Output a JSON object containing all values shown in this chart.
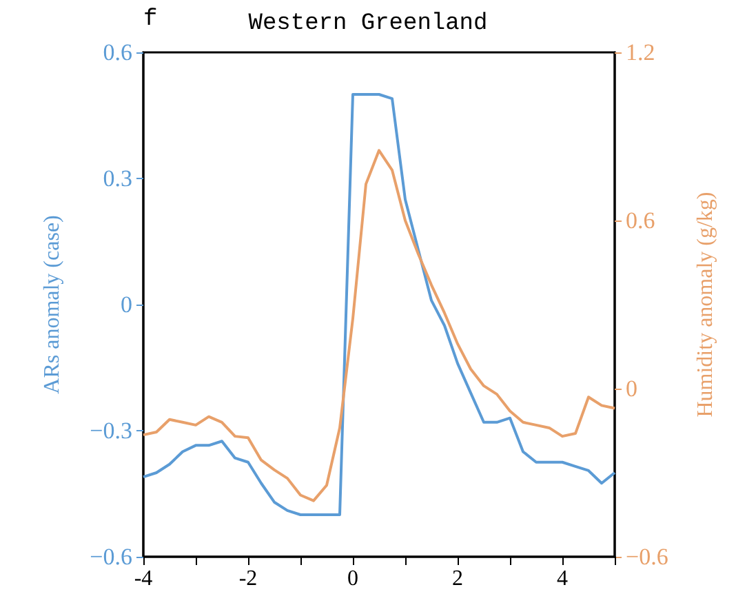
{
  "chart_data": {
    "type": "line",
    "title": "Western Greenland",
    "annotations": [
      "f"
    ],
    "ylabel": "ARs anomaly (case)",
    "y2label": "Humidity anomaly (g/kg)",
    "x": [
      -4,
      -3.75,
      -3.5,
      -3.25,
      -3,
      -2.75,
      -2.5,
      -2.25,
      -2,
      -1.75,
      -1.5,
      -1.25,
      -1,
      -0.75,
      -0.5,
      -0.25,
      0,
      0.25,
      0.5,
      0.75,
      1,
      1.25,
      1.5,
      1.75,
      2,
      2.25,
      2.5,
      2.75,
      3,
      3.25,
      3.5,
      3.75,
      4,
      4.25,
      4.5,
      4.75,
      5
    ],
    "series": [
      {
        "color": "#5b9bd5",
        "values": [
          -0.41,
          -0.4,
          -0.38,
          -0.35,
          -0.335,
          -0.335,
          -0.325,
          -0.365,
          -0.375,
          -0.425,
          -0.47,
          -0.49,
          -0.5,
          -0.5,
          -0.5,
          -0.5,
          0.5,
          0.5,
          0.5,
          0.49,
          0.25,
          0.13,
          0.01,
          -0.05,
          -0.14,
          -0.21,
          -0.28,
          -0.28,
          -0.27,
          -0.35,
          -0.375,
          -0.375,
          -0.375,
          -0.385,
          -0.395,
          -0.425,
          -0.4
        ]
      },
      {
        "color": "#e8a06a",
        "axis": "y2",
        "values": [
          -0.165,
          -0.155,
          -0.11,
          -0.12,
          -0.13,
          -0.1,
          -0.12,
          -0.17,
          -0.175,
          -0.255,
          -0.29,
          -0.32,
          -0.38,
          -0.4,
          -0.345,
          -0.14,
          0.25,
          0.73,
          0.85,
          0.78,
          0.6,
          0.48,
          0.37,
          0.27,
          0.16,
          0.07,
          0.01,
          -0.02,
          -0.08,
          -0.12,
          -0.13,
          -0.14,
          -0.17,
          -0.16,
          -0.03,
          -0.06,
          -0.07
        ]
      }
    ],
    "xlim": [
      -4,
      5
    ],
    "xticks": [
      -4,
      {
        "value": -3,
        "label": null
      },
      -2,
      {
        "value": -1,
        "label": null
      },
      0,
      {
        "value": 1,
        "label": null
      },
      2,
      {
        "value": 3,
        "label": null
      },
      4,
      {
        "value": 5,
        "label": null
      }
    ],
    "ylim": [
      -0.6,
      0.6
    ],
    "yticks": [
      {
        "value": -0.6,
        "label": "−0.6"
      },
      {
        "value": -0.3,
        "label": "−0.3"
      },
      0,
      0.3,
      0.6
    ],
    "y2lim": [
      -0.6,
      1.2
    ],
    "y2ticks": [
      {
        "value": -0.6,
        "label": "−0.6"
      },
      0,
      0.6,
      1.2
    ],
    "marker": "none",
    "line_style": "solid"
  }
}
